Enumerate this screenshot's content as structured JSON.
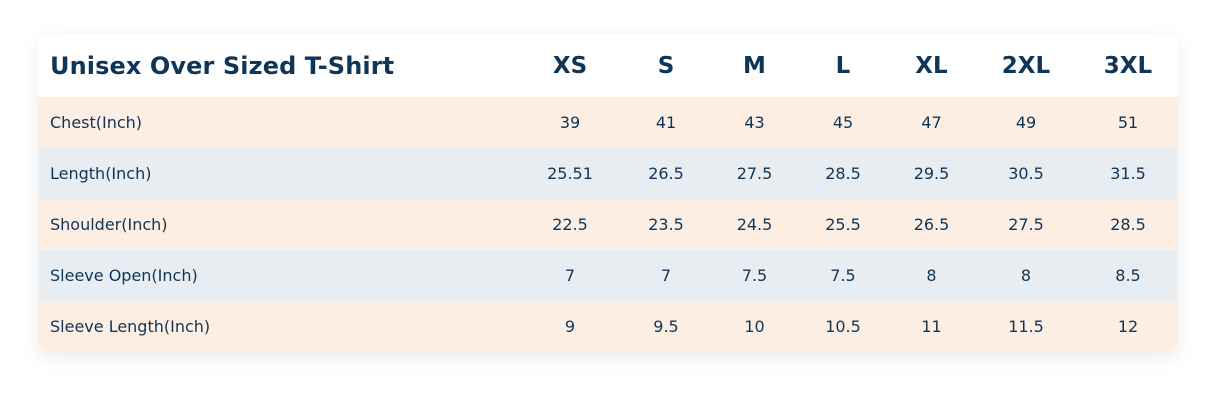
{
  "table": {
    "title": "Unisex Over Sized T-Shirt",
    "sizes": [
      "XS",
      "S",
      "M",
      "L",
      "XL",
      "2XL",
      "3XL"
    ],
    "rows": [
      {
        "label": "Chest(Inch)",
        "values": [
          "39",
          "41",
          "43",
          "45",
          "47",
          "49",
          "51"
        ]
      },
      {
        "label": "Length(Inch)",
        "values": [
          "25.51",
          "26.5",
          "27.5",
          "28.5",
          "29.5",
          "30.5",
          "31.5"
        ]
      },
      {
        "label": "Shoulder(Inch)",
        "values": [
          "22.5",
          "23.5",
          "24.5",
          "25.5",
          "26.5",
          "27.5",
          "28.5"
        ]
      },
      {
        "label": "Sleeve Open(Inch)",
        "values": [
          "7",
          "7",
          "7.5",
          "7.5",
          "8",
          "8",
          "8.5"
        ]
      },
      {
        "label": "Sleeve Length(Inch)",
        "values": [
          "9",
          "9.5",
          "10",
          "10.5",
          "11",
          "11.5",
          "12"
        ]
      }
    ]
  },
  "colors": {
    "text": "#0f3557",
    "row_odd": "#fdeee3",
    "row_even": "#e8edf2",
    "header_bg": "#ffffff"
  }
}
